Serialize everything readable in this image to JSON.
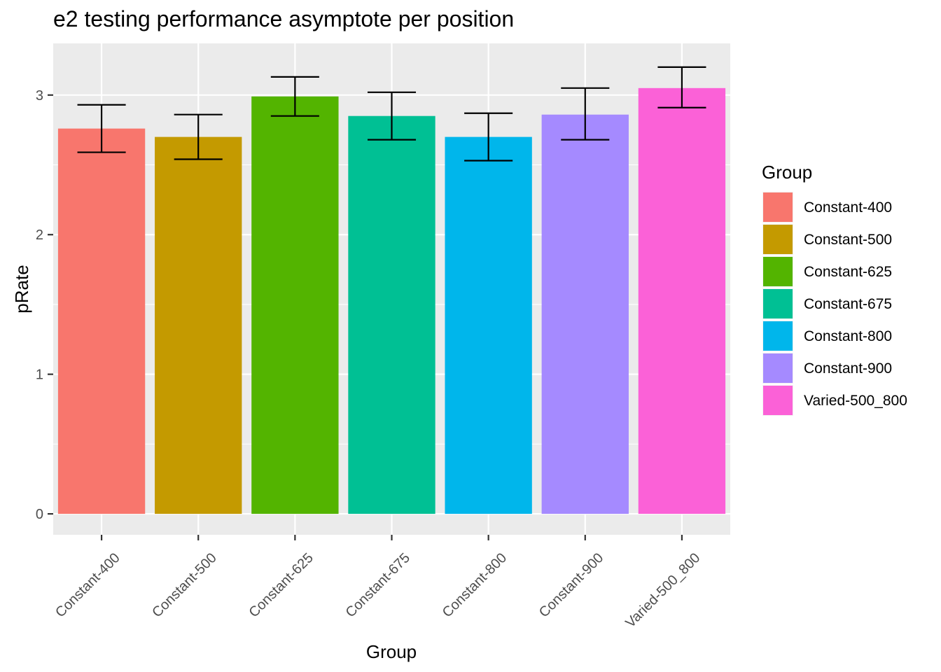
{
  "chart_data": {
    "type": "bar",
    "title": "e2 testing performance asymptote per position",
    "xlabel": "Group",
    "ylabel": "pRate",
    "categories": [
      "Constant-400",
      "Constant-500",
      "Constant-625",
      "Constant-675",
      "Constant-800",
      "Constant-900",
      "Varied-500_800"
    ],
    "values": [
      2.76,
      2.7,
      2.99,
      2.85,
      2.7,
      2.86,
      3.05
    ],
    "error_lower": [
      2.59,
      2.54,
      2.85,
      2.68,
      2.53,
      2.68,
      2.91
    ],
    "error_upper": [
      2.93,
      2.86,
      3.13,
      3.02,
      2.87,
      3.05,
      3.2
    ],
    "ylim": [
      -0.15,
      3.37
    ],
    "yticks": [
      0,
      1,
      2,
      3
    ],
    "grid": true,
    "legend": {
      "title": "Group",
      "placement": "right",
      "entries": [
        "Constant-400",
        "Constant-500",
        "Constant-625",
        "Constant-675",
        "Constant-800",
        "Constant-900",
        "Varied-500_800"
      ]
    },
    "colors": [
      "#F8766D",
      "#C49A00",
      "#53B400",
      "#00C094",
      "#00B6EB",
      "#A58AFF",
      "#FB61D7"
    ]
  }
}
